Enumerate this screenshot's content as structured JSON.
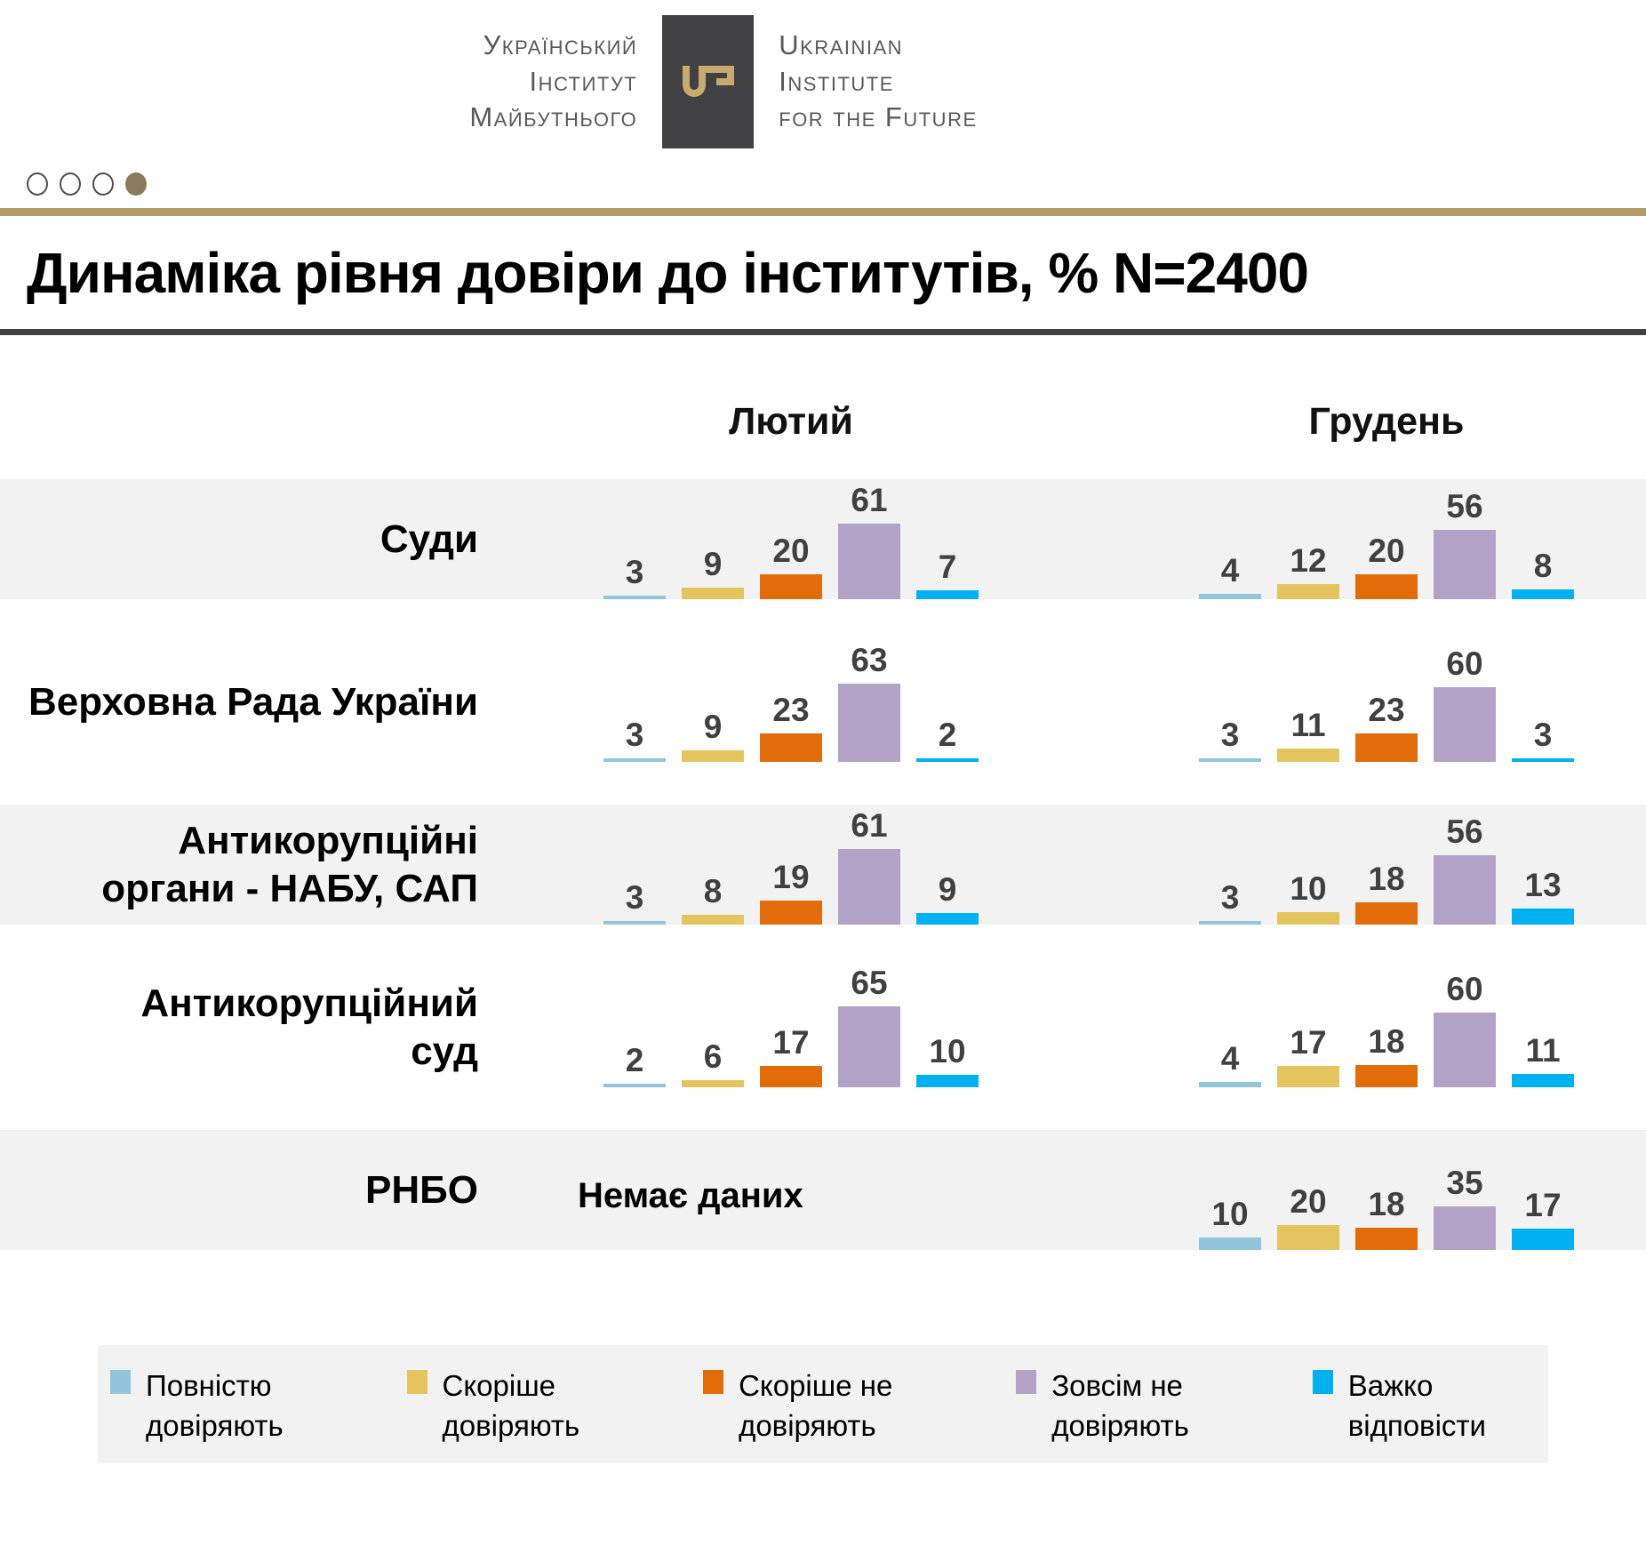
{
  "header": {
    "logo": {
      "ukr_lines": [
        "Український",
        "Інститут",
        "Майбутнього"
      ],
      "eng_lines": [
        "Ukrainian",
        "Institute",
        "for the Future"
      ],
      "mark_color": "#414042",
      "key_color": "#c8a96e"
    },
    "pagination": {
      "total": 4,
      "active_index": 3
    },
    "accent_line_color": "#b49c6a",
    "title": "Динаміка рівня довіри до інститутів, % N=2400",
    "title_rule_color": "#404040"
  },
  "chart_data": {
    "type": "bar",
    "title": "Динаміка рівня довіри до інститутів, % N=2400",
    "unit": "%",
    "sample_size": "N=2400",
    "groups": [
      "Лютий",
      "Грудень"
    ],
    "value_axis_max": 65,
    "row_shading_color": "#f2f2f2",
    "value_label_color": "#404040",
    "series": [
      {
        "key": "fully-trust",
        "label": "Повністю\nдовіряють",
        "color": "#92c5dd"
      },
      {
        "key": "rather-trust",
        "label": "Скоріше\nдовіряють",
        "color": "#e5c45f"
      },
      {
        "key": "rather-distrust",
        "label": "Скоріше не\nдовіряють",
        "color": "#e36c0a"
      },
      {
        "key": "full-distrust",
        "label": "Зовсім не\nдовіряють",
        "color": "#b3a2c7"
      },
      {
        "key": "hard-to-answer",
        "label": "Важко\nвідповісти",
        "color": "#00b0f0"
      }
    ],
    "rows": [
      {
        "institution": "Суди",
        "february": [
          3,
          9,
          20,
          61,
          7
        ],
        "december": [
          4,
          12,
          20,
          56,
          8
        ]
      },
      {
        "institution": "Верховна Рада України",
        "february": [
          3,
          9,
          23,
          63,
          2
        ],
        "december": [
          3,
          11,
          23,
          60,
          3
        ]
      },
      {
        "institution": "Антикорупційні\nоргани - НАБУ, САП",
        "february": [
          3,
          8,
          19,
          61,
          9
        ],
        "december": [
          3,
          10,
          18,
          56,
          13
        ]
      },
      {
        "institution": "Антикорупційний\nсуд",
        "february": [
          2,
          6,
          17,
          65,
          10
        ],
        "december": [
          4,
          17,
          18,
          60,
          11
        ]
      },
      {
        "institution": "РНБО",
        "february": null,
        "no_data_note": "Немає даних",
        "december": [
          10,
          20,
          18,
          35,
          17
        ]
      }
    ]
  }
}
